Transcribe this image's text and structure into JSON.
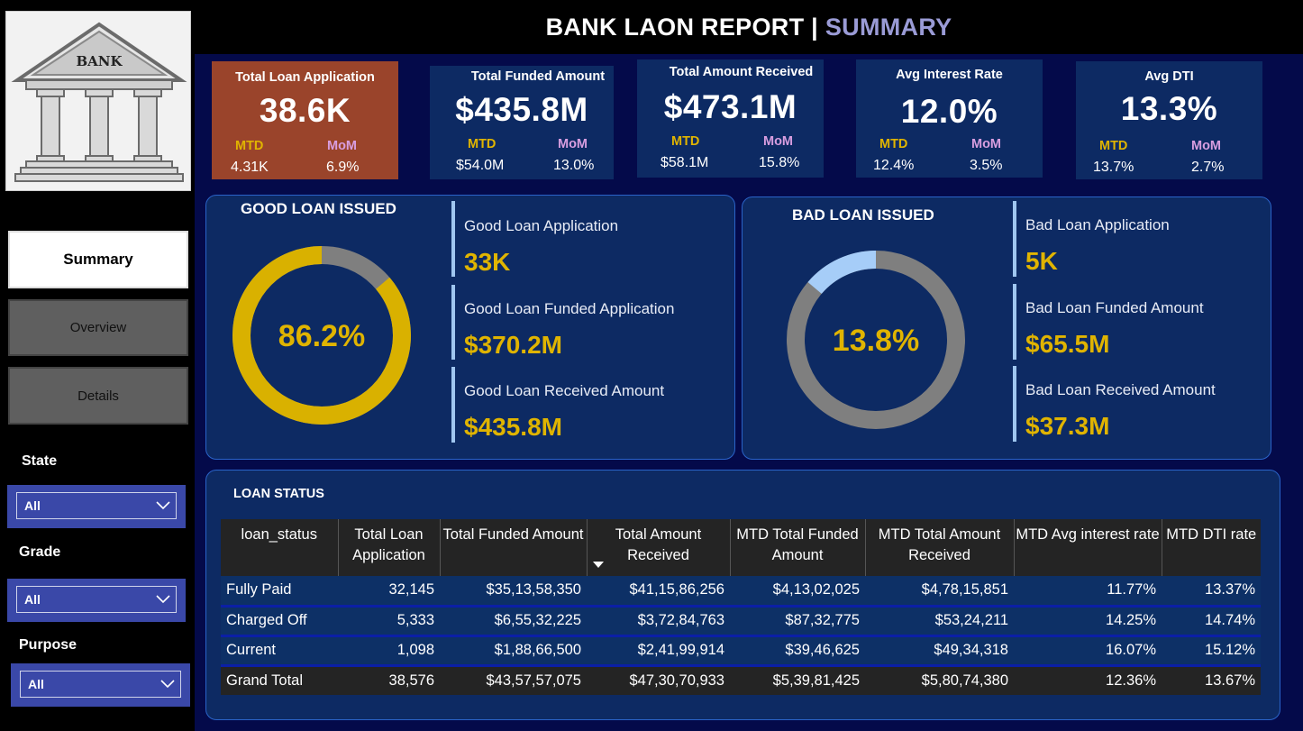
{
  "logo": {
    "text": "BANK"
  },
  "nav": {
    "summary": "Summary",
    "overview": "Overview",
    "details": "Details"
  },
  "filters": {
    "state": {
      "label": "State",
      "value": "All"
    },
    "grade": {
      "label": "Grade",
      "value": "All"
    },
    "purpose": {
      "label": "Purpose",
      "value": "All"
    }
  },
  "header": {
    "title": "BANK LAON REPORT",
    "separator": "|",
    "subtitle": "SUMMARY"
  },
  "kpis": [
    {
      "title": "Total Loan Application",
      "value": "38.6K",
      "mtd_label": "MTD",
      "mom_label": "MoM",
      "mtd": "4.31K",
      "mom": "6.9%"
    },
    {
      "title": "Total Funded Amount",
      "value": "$435.8M",
      "mtd_label": "MTD",
      "mom_label": "MoM",
      "mtd": "$54.0M",
      "mom": "13.0%"
    },
    {
      "title": "Total Amount Received",
      "value": "$473.1M",
      "mtd_label": "MTD",
      "mom_label": "MoM",
      "mtd": "$58.1M",
      "mom": "15.8%"
    },
    {
      "title": "Avg Interest Rate",
      "value": "12.0%",
      "mtd_label": "MTD",
      "mom_label": "MoM",
      "mtd": "12.4%",
      "mom": "3.5%"
    },
    {
      "title": "Avg DTI",
      "value": "13.3%",
      "mtd_label": "MTD",
      "mom_label": "MoM",
      "mtd": "13.7%",
      "mom": "2.7%"
    }
  ],
  "good_loan": {
    "title": "GOOD LOAN ISSUED",
    "percent_label": "86.2%",
    "percent": 0.862,
    "metrics": [
      {
        "label": "Good Loan Application",
        "value": "33K"
      },
      {
        "label": "Good Loan Funded Application",
        "value": "$370.2M"
      },
      {
        "label": "Good Loan Received Amount",
        "value": "$435.8M"
      }
    ],
    "colors": {
      "fill": "#d9b100",
      "rest": "#7f7f7f"
    }
  },
  "bad_loan": {
    "title": "BAD LOAN ISSUED",
    "percent_label": "13.8%",
    "percent": 0.138,
    "metrics": [
      {
        "label": "Bad Loan Application",
        "value": "5K"
      },
      {
        "label": "Bad Loan Funded Amount",
        "value": "$65.5M"
      },
      {
        "label": "Bad Loan Received Amount",
        "value": "$37.3M"
      }
    ],
    "colors": {
      "fill": "#a6cdf8",
      "rest": "#7f7f7f"
    }
  },
  "loan_status": {
    "title": "LOAN STATUS",
    "columns": [
      "loan_status",
      "Total Loan Application",
      "Total Funded Amount",
      "Total Amount Received",
      "MTD Total Funded Amount",
      "MTD Total Amount Received",
      "MTD Avg interest rate",
      "MTD DTI rate"
    ],
    "rows": [
      [
        "Fully Paid",
        "32,145",
        "$35,13,58,350",
        "$41,15,86,256",
        "$4,13,02,025",
        "$4,78,15,851",
        "11.77%",
        "13.37%"
      ],
      [
        "Charged Off",
        "5,333",
        "$6,55,32,225",
        "$3,72,84,763",
        "$87,32,775",
        "$53,24,211",
        "14.25%",
        "14.74%"
      ],
      [
        "Current",
        "1,098",
        "$1,88,66,500",
        "$2,41,99,914",
        "$39,46,625",
        "$49,34,318",
        "16.07%",
        "15.12%"
      ]
    ],
    "total": [
      "Grand Total",
      "38,576",
      "$43,57,57,075",
      "$47,30,70,933",
      "$5,39,81,425",
      "$5,80,74,380",
      "12.36%",
      "13.67%"
    ]
  }
}
